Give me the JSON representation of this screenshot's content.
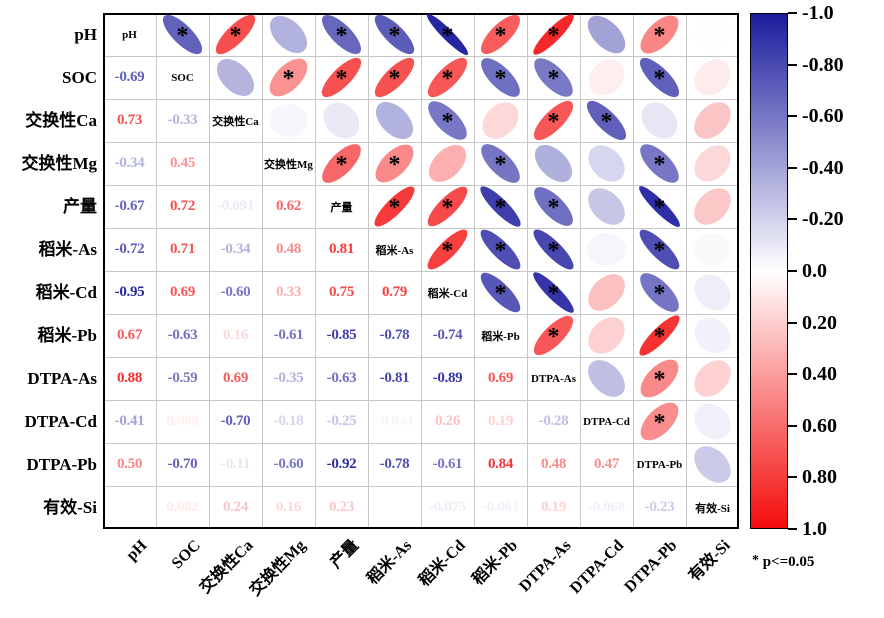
{
  "figure": {
    "significance_note": {
      "star": "*",
      "text": "p<=0.05"
    },
    "colorbar": {
      "ticks": [
        "-1.0",
        "-0.80",
        "-0.60",
        "-0.40",
        "-0.20",
        "0.0",
        "0.20",
        "0.40",
        "0.60",
        "0.80",
        "1.0"
      ],
      "negative_color": "#1c1c9e",
      "mid_color": "#ffffff",
      "positive_color": "#f40c0c"
    }
  },
  "chart_data": {
    "type": "heatmap",
    "subtype": "correlation-matrix-ellipse",
    "title": "",
    "legend_position": "right-colorbar",
    "value_range": [
      -1.0,
      1.0
    ],
    "variables": [
      "pH",
      "SOC",
      "交换性Ca",
      "交换性Mg",
      "产量",
      "稻米-As",
      "稻米-Cd",
      "稻米-Pb",
      "DTPA-As",
      "DTPA-Cd",
      "DTPA-Pb",
      "有效-Si"
    ],
    "lower_triangle": "correlation coefficients",
    "upper_triangle": "ellipses, * marks p<=0.05",
    "pairs": [
      [
        1,
        0,
        "-0.69",
        -0.69,
        1
      ],
      [
        2,
        0,
        "0.73",
        0.73,
        1
      ],
      [
        2,
        1,
        "-0.33",
        -0.33,
        0
      ],
      [
        3,
        0,
        "-0.34",
        -0.34,
        0
      ],
      [
        3,
        1,
        "0.45",
        0.45,
        1
      ],
      [
        3,
        2,
        "",
        -0.04,
        0
      ],
      [
        4,
        0,
        "-0.67",
        -0.67,
        1
      ],
      [
        4,
        1,
        "0.72",
        0.72,
        1
      ],
      [
        4,
        2,
        "-0.091",
        -0.091,
        0
      ],
      [
        4,
        3,
        "0.62",
        0.62,
        1
      ],
      [
        5,
        0,
        "-0.72",
        -0.72,
        1
      ],
      [
        5,
        1,
        "0.71",
        0.71,
        1
      ],
      [
        5,
        2,
        "-0.34",
        -0.34,
        0
      ],
      [
        5,
        3,
        "0.48",
        0.48,
        1
      ],
      [
        5,
        4,
        "0.81",
        0.81,
        1
      ],
      [
        6,
        0,
        "-0.95",
        -0.95,
        1
      ],
      [
        6,
        1,
        "0.69",
        0.69,
        1
      ],
      [
        6,
        2,
        "-0.60",
        -0.6,
        1
      ],
      [
        6,
        3,
        "0.33",
        0.33,
        0
      ],
      [
        6,
        4,
        "0.75",
        0.75,
        1
      ],
      [
        6,
        5,
        "0.79",
        0.79,
        1
      ],
      [
        7,
        0,
        "0.67",
        0.67,
        1
      ],
      [
        7,
        1,
        "-0.63",
        -0.63,
        1
      ],
      [
        7,
        2,
        "0.16",
        0.16,
        0
      ],
      [
        7,
        3,
        "-0.61",
        -0.61,
        1
      ],
      [
        7,
        4,
        "-0.85",
        -0.85,
        1
      ],
      [
        7,
        5,
        "-0.78",
        -0.78,
        1
      ],
      [
        7,
        6,
        "-0.74",
        -0.74,
        1
      ],
      [
        8,
        0,
        "0.88",
        0.88,
        1
      ],
      [
        8,
        1,
        "-0.59",
        -0.59,
        1
      ],
      [
        8,
        2,
        "0.69",
        0.69,
        1
      ],
      [
        8,
        3,
        "-0.35",
        -0.35,
        0
      ],
      [
        8,
        4,
        "-0.63",
        -0.63,
        1
      ],
      [
        8,
        5,
        "-0.81",
        -0.81,
        1
      ],
      [
        8,
        6,
        "-0.89",
        -0.89,
        1
      ],
      [
        8,
        7,
        "0.69",
        0.69,
        1
      ],
      [
        9,
        0,
        "-0.41",
        -0.41,
        0
      ],
      [
        9,
        1,
        "0.068",
        0.068,
        0
      ],
      [
        9,
        2,
        "-0.70",
        -0.7,
        1
      ],
      [
        9,
        3,
        "-0.18",
        -0.18,
        0
      ],
      [
        9,
        4,
        "-0.25",
        -0.25,
        0
      ],
      [
        9,
        5,
        "-0.044",
        -0.044,
        0
      ],
      [
        9,
        6,
        "0.26",
        0.26,
        0
      ],
      [
        9,
        7,
        "0.19",
        0.19,
        0
      ],
      [
        9,
        8,
        "-0.28",
        -0.28,
        0
      ],
      [
        10,
        0,
        "0.50",
        0.5,
        1
      ],
      [
        10,
        1,
        "-0.70",
        -0.7,
        1
      ],
      [
        10,
        2,
        "-0.11",
        -0.11,
        0
      ],
      [
        10,
        3,
        "-0.60",
        -0.6,
        1
      ],
      [
        10,
        4,
        "-0.92",
        -0.92,
        1
      ],
      [
        10,
        5,
        "-0.78",
        -0.78,
        1
      ],
      [
        10,
        6,
        "-0.61",
        -0.61,
        1
      ],
      [
        10,
        7,
        "0.84",
        0.84,
        1
      ],
      [
        10,
        8,
        "0.48",
        0.48,
        1
      ],
      [
        10,
        9,
        "0.47",
        0.47,
        1
      ],
      [
        11,
        0,
        "",
        0.01,
        0
      ],
      [
        11,
        1,
        "0.082",
        0.082,
        0
      ],
      [
        11,
        2,
        "0.24",
        0.24,
        0
      ],
      [
        11,
        3,
        "0.16",
        0.16,
        0
      ],
      [
        11,
        4,
        "0.23",
        0.23,
        0
      ],
      [
        11,
        5,
        "",
        -0.02,
        0
      ],
      [
        11,
        6,
        "-0.075",
        -0.075,
        0
      ],
      [
        11,
        7,
        "-0.061",
        -0.061,
        0
      ],
      [
        11,
        8,
        "0.19",
        0.19,
        0
      ],
      [
        11,
        9,
        "-0.068",
        -0.068,
        0
      ],
      [
        11,
        10,
        "-0.23",
        -0.23,
        0
      ]
    ]
  }
}
